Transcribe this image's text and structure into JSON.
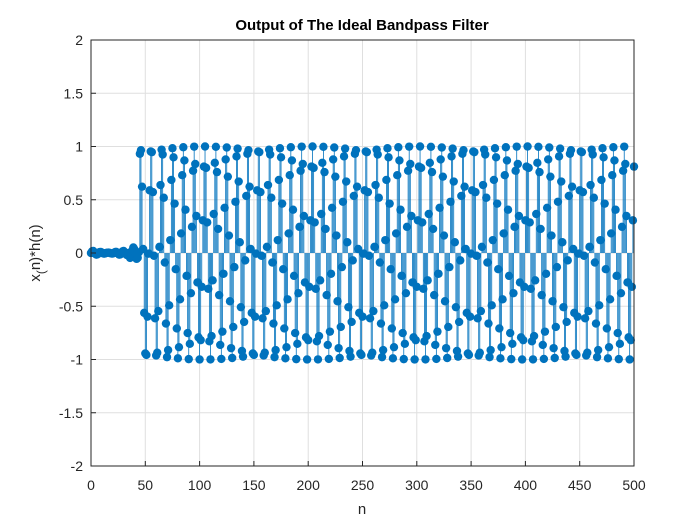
{
  "chart_data": {
    "type": "stem",
    "title": "Output of The Ideal Bandpass Filter",
    "xlabel": "n",
    "ylabel_parts": [
      "x",
      "(",
      "n)*h(n)"
    ],
    "xlim": [
      0,
      500
    ],
    "ylim": [
      -2,
      2
    ],
    "xticks": [
      0,
      50,
      100,
      150,
      200,
      250,
      300,
      350,
      400,
      450,
      500
    ],
    "yticks": [
      -2,
      -1.5,
      -1,
      -0.5,
      0,
      0.5,
      1,
      1.5,
      2
    ],
    "xtick_labels": [
      "0",
      "50",
      "100",
      "150",
      "200",
      "250",
      "300",
      "350",
      "400",
      "450",
      "500"
    ],
    "ytick_labels": [
      "-2",
      "-1.5",
      "-1",
      "-0.5",
      "0",
      "0.5",
      "1",
      "1.5",
      "2"
    ],
    "grid": true,
    "series_color": "#0072BD",
    "n_start": 0,
    "n_end": 500,
    "signal_model": {
      "transient_end_n": 45,
      "transient_amplitude": 0.02,
      "steady_amplitude": 1.0,
      "steady_period_samples": 9.9
    }
  }
}
